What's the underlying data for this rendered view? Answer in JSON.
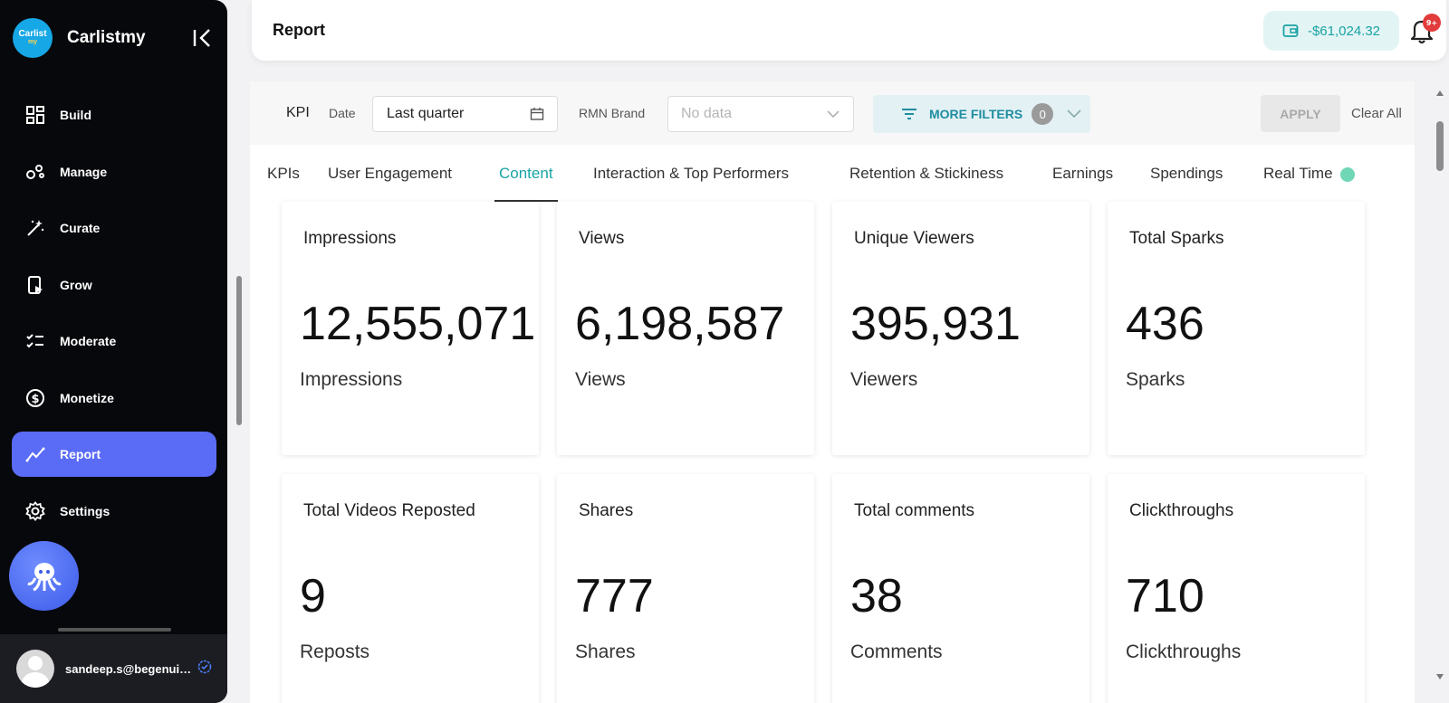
{
  "sidebar": {
    "brand_logo_line1": "Carlist",
    "brand_logo_line2": "my",
    "brand_name": "Carlistmy",
    "items": [
      {
        "label": "Build",
        "icon": "dashboard-icon"
      },
      {
        "label": "Manage",
        "icon": "manage-icon"
      },
      {
        "label": "Curate",
        "icon": "magic-wand-icon"
      },
      {
        "label": "Grow",
        "icon": "grow-icon"
      },
      {
        "label": "Moderate",
        "icon": "checklist-icon"
      },
      {
        "label": "Monetize",
        "icon": "dollar-icon"
      },
      {
        "label": "Report",
        "icon": "trend-icon",
        "active": true
      },
      {
        "label": "Settings",
        "icon": "gear-icon"
      }
    ],
    "user_email": "sandeep.s@begenuin.com"
  },
  "header": {
    "title": "Report",
    "balance": "-$61,024.32",
    "notification_badge": "9+"
  },
  "filters": {
    "kpi_label": "KPI",
    "date_label": "Date",
    "date_value": "Last quarter",
    "brand_label": "RMN Brand",
    "brand_placeholder": "No data",
    "more_filters_label": "MORE FILTERS",
    "more_filters_count": "0",
    "apply_label": "APPLY",
    "clear_label": "Clear All"
  },
  "tabs": [
    "KPIs",
    "User Engagement",
    "Content",
    "Interaction & Top Performers",
    "Retention & Stickiness",
    "Earnings",
    "Spendings",
    "Real Time"
  ],
  "active_tab": "Content",
  "cards": [
    {
      "title": "Impressions",
      "value": "12,555,071",
      "unit": "Impressions"
    },
    {
      "title": "Views",
      "value": "6,198,587",
      "unit": "Views"
    },
    {
      "title": "Unique Viewers",
      "value": "395,931",
      "unit": "Viewers"
    },
    {
      "title": "Total Sparks",
      "value": "436",
      "unit": "Sparks"
    },
    {
      "title": "Total Videos Reposted",
      "value": "9",
      "unit": "Reposts"
    },
    {
      "title": "Shares",
      "value": "777",
      "unit": "Shares"
    },
    {
      "title": "Total comments",
      "value": "38",
      "unit": "Comments"
    },
    {
      "title": "Clickthroughs",
      "value": "710",
      "unit": "Clickthroughs"
    }
  ],
  "colors": {
    "sidebar_bg": "#07080c",
    "active_nav": "#5a6cf5",
    "accent_teal": "#1aa3a3",
    "badge_red": "#e23b3b"
  }
}
